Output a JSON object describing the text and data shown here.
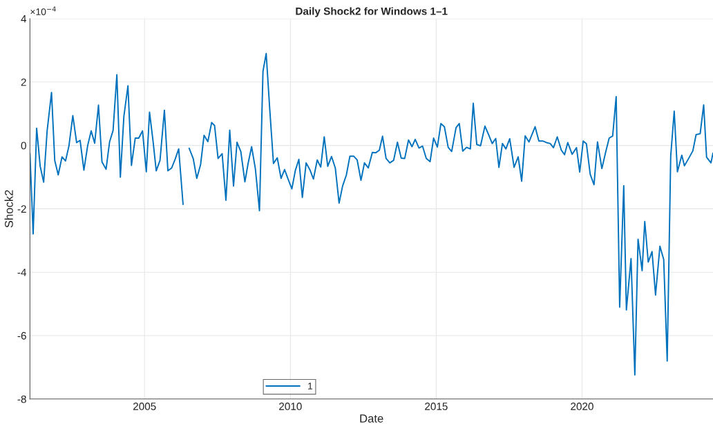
{
  "chart_data": {
    "type": "line",
    "title": "Daily Shock2 for Windows 1–1",
    "xlabel": "Date",
    "ylabel": "Shock2",
    "annotations": [
      "×10$^{−4}$"
    ],
    "xlim": [
      2001.07,
      2024.49
    ],
    "xticks": [
      2005,
      2010,
      2015,
      2020
    ],
    "ylim": [
      -8,
      4
    ],
    "yticks": [
      -8,
      -6,
      -4,
      -2,
      0,
      2,
      4
    ],
    "grid": true,
    "legend": "bottom",
    "marker": "none",
    "line_style": "solid",
    "series": [
      {
        "name": "1",
        "color": "#0072bd",
        "x": [
          2001.07,
          2001.18,
          2001.3,
          2001.42,
          2001.54,
          2001.66,
          2001.81,
          2001.92,
          2002.04,
          2002.17,
          2002.29,
          2002.41,
          2002.54,
          2002.67,
          2002.79,
          2002.92,
          2003.05,
          2003.17,
          2003.29,
          2003.42,
          2003.54,
          2003.68,
          2003.8,
          2003.92,
          2004.05,
          2004.17,
          2004.29,
          2004.43,
          2004.55,
          2004.68,
          2004.8,
          2004.93,
          2005.06,
          2005.17,
          2005.29,
          2005.4,
          2005.53,
          2005.68,
          2005.8,
          2005.93,
          2006.05,
          2006.17,
          2006.32,
          2006.43,
          2006.53,
          2006.67,
          2006.79,
          2006.92,
          2007.04,
          2007.17,
          2007.3,
          2007.4,
          2007.52,
          2007.66,
          2007.79,
          2007.92,
          2008.05,
          2008.17,
          2008.3,
          2008.44,
          2008.55,
          2008.67,
          2008.8,
          2008.94,
          2009.06,
          2009.17,
          2009.29,
          2009.42,
          2009.55,
          2009.68,
          2009.8,
          2009.92,
          2010.05,
          2010.17,
          2010.29,
          2010.41,
          2010.54,
          2010.67,
          2010.79,
          2010.92,
          2011.04,
          2011.16,
          2011.28,
          2011.41,
          2011.54,
          2011.67,
          2011.79,
          2011.92,
          2012.04,
          2012.17,
          2012.29,
          2012.42,
          2012.54,
          2012.67,
          2012.81,
          2012.93,
          2013.05,
          2013.16,
          2013.28,
          2013.41,
          2013.54,
          2013.67,
          2013.8,
          2013.92,
          2014.05,
          2014.17,
          2014.28,
          2014.41,
          2014.53,
          2014.66,
          2014.79,
          2014.91,
          2015.04,
          2015.16,
          2015.28,
          2015.41,
          2015.53,
          2015.68,
          2015.79,
          2015.91,
          2016.04,
          2016.17,
          2016.27,
          2016.39,
          2016.52,
          2016.67,
          2016.8,
          2016.92,
          2017.04,
          2017.15,
          2017.27,
          2017.39,
          2017.52,
          2017.67,
          2017.81,
          2017.93,
          2018.05,
          2018.18,
          2018.39,
          2018.52,
          2018.65,
          2018.78,
          2018.91,
          2019.02,
          2019.15,
          2019.29,
          2019.4,
          2019.51,
          2019.66,
          2019.81,
          2019.92,
          2020.04,
          2020.15,
          2020.28,
          2020.41,
          2020.53,
          2020.68,
          2020.81,
          2020.93,
          2021.05,
          2021.17,
          2021.29,
          2021.43,
          2021.52,
          2021.68,
          2021.81,
          2021.92,
          2022.06,
          2022.15,
          2022.27,
          2022.4,
          2022.52,
          2022.67,
          2022.8,
          2022.92,
          2023.04,
          2023.16,
          2023.27,
          2023.42,
          2023.51,
          2023.65,
          2023.8,
          2023.91,
          2024.05,
          2024.17,
          2024.27,
          2024.42,
          2024.49
        ],
        "values": [
          -0.25,
          -2.79,
          0.54,
          -0.65,
          -1.16,
          0.47,
          1.67,
          -0.47,
          -0.93,
          -0.36,
          -0.49,
          0.0,
          0.94,
          0.09,
          0.16,
          -0.78,
          0.0,
          0.46,
          0.07,
          1.27,
          -0.52,
          -0.75,
          0.11,
          0.47,
          2.23,
          -1.0,
          0.91,
          1.88,
          -0.63,
          0.23,
          0.23,
          0.46,
          -0.83,
          1.05,
          0.14,
          -0.8,
          -0.47,
          1.11,
          -0.8,
          -0.71,
          -0.43,
          -0.11,
          -1.86,
          null,
          -0.09,
          -0.42,
          -1.04,
          -0.61,
          0.32,
          0.12,
          0.72,
          0.63,
          -0.41,
          -0.26,
          -1.73,
          0.48,
          -1.28,
          0.1,
          -0.19,
          -1.15,
          -0.57,
          -0.04,
          -0.74,
          -2.06,
          2.34,
          2.9,
          1.17,
          -0.57,
          -0.39,
          -1.04,
          -0.76,
          -1.06,
          -1.37,
          -0.79,
          -0.44,
          -1.64,
          -0.55,
          -0.77,
          -1.06,
          -0.46,
          -0.68,
          0.27,
          -0.66,
          -0.35,
          -0.71,
          -1.82,
          -1.28,
          -0.93,
          -0.34,
          -0.34,
          -0.46,
          -1.1,
          -0.55,
          -0.71,
          -0.22,
          -0.23,
          -0.15,
          0.29,
          -0.41,
          -0.55,
          -0.47,
          0.1,
          -0.4,
          -0.41,
          0.17,
          -0.04,
          0.19,
          -0.08,
          -0.02,
          -0.41,
          -0.51,
          0.23,
          -0.05,
          0.69,
          0.59,
          -0.06,
          -0.19,
          0.56,
          0.69,
          -0.18,
          -0.06,
          -0.11,
          1.33,
          0.03,
          -0.01,
          0.61,
          0.33,
          0.06,
          0.22,
          -0.69,
          0.06,
          -0.11,
          0.21,
          -0.69,
          -0.36,
          -1.13,
          0.3,
          0.11,
          0.59,
          0.14,
          0.14,
          0.09,
          0.06,
          -0.07,
          0.27,
          -0.15,
          -0.29,
          0.09,
          -0.28,
          -0.07,
          -0.84,
          0.14,
          0.05,
          -0.91,
          -1.24,
          0.11,
          -0.73,
          -0.21,
          0.23,
          0.3,
          1.54,
          -5.1,
          -1.27,
          -5.19,
          -3.57,
          -7.24,
          -2.96,
          -3.95,
          -2.4,
          -3.68,
          -3.35,
          -4.72,
          -3.18,
          -3.6,
          -6.8,
          -0.34,
          1.08,
          -0.83,
          -0.31,
          -0.64,
          -0.42,
          -0.17,
          0.34,
          0.37,
          1.28,
          -0.37,
          -0.55,
          -0.24
        ]
      }
    ]
  }
}
